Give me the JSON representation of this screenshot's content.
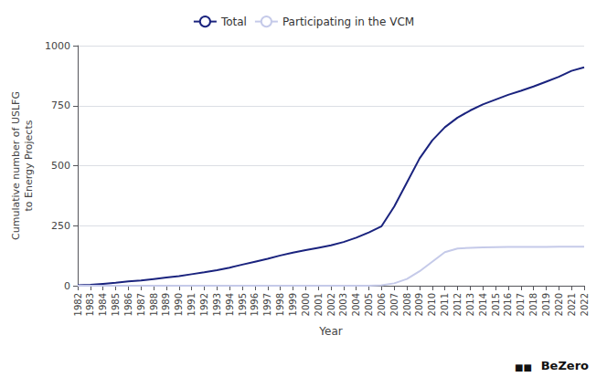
{
  "chart_data": {
    "type": "line",
    "x": [
      1982,
      1983,
      1984,
      1985,
      1986,
      1987,
      1988,
      1989,
      1990,
      1991,
      1992,
      1993,
      1994,
      1995,
      1996,
      1997,
      1998,
      1999,
      2000,
      2001,
      2002,
      2003,
      2004,
      2005,
      2006,
      2007,
      2008,
      2009,
      2010,
      2011,
      2012,
      2013,
      2014,
      2015,
      2016,
      2017,
      2018,
      2019,
      2020,
      2021,
      2022
    ],
    "series": [
      {
        "name": "Total",
        "color": "#1a237e",
        "values": [
          2,
          4,
          8,
          12,
          18,
          22,
          28,
          34,
          40,
          48,
          56,
          65,
          75,
          88,
          100,
          112,
          126,
          138,
          148,
          158,
          168,
          182,
          200,
          222,
          248,
          330,
          430,
          530,
          605,
          660,
          700,
          730,
          755,
          775,
          795,
          812,
          830,
          850,
          870,
          895,
          910
        ]
      },
      {
        "name": "Participating in the VCM",
        "color": "#c5cae9",
        "values": [
          0,
          0,
          0,
          0,
          0,
          0,
          0,
          0,
          0,
          0,
          0,
          0,
          0,
          0,
          0,
          0,
          0,
          0,
          0,
          0,
          0,
          0,
          0,
          0,
          2,
          10,
          28,
          60,
          100,
          140,
          155,
          158,
          160,
          161,
          162,
          162,
          162,
          162,
          163,
          163,
          163
        ]
      }
    ],
    "xlabel": "Year",
    "ylabel": "Cumulative number of USLFG\nto Energy Projects",
    "xlim": [
      1982,
      2022
    ],
    "xticks": [
      1982,
      1983,
      1984,
      1985,
      1986,
      1987,
      1988,
      1989,
      1990,
      1991,
      1992,
      1993,
      1994,
      1995,
      1996,
      1997,
      1998,
      1999,
      2000,
      2001,
      2002,
      2003,
      2004,
      2005,
      2006,
      2007,
      2008,
      2009,
      2010,
      2011,
      2012,
      2013,
      2014,
      2015,
      2016,
      2017,
      2018,
      2019,
      2020,
      2021,
      2022
    ],
    "ylim": [
      0,
      1000
    ],
    "yticks": [
      0,
      250,
      500,
      750,
      1000
    ],
    "grid": true,
    "legend": "top",
    "annotations": [
      "■■",
      "BeZero"
    ]
  }
}
